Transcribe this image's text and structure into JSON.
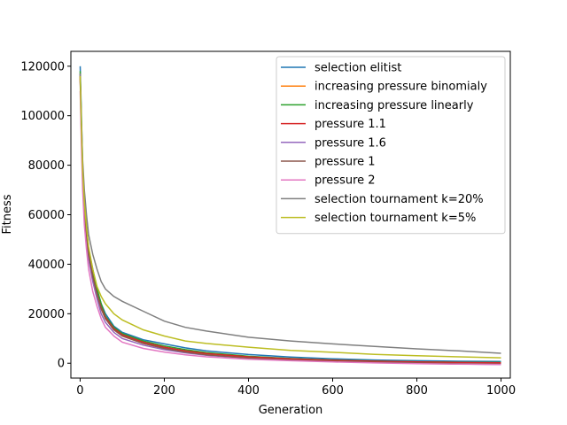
{
  "chart_data": {
    "type": "line",
    "title": "",
    "xlabel": "Generation",
    "ylabel": "Fitness",
    "xlim": [
      -22,
      1022
    ],
    "ylim": [
      -6000,
      126000
    ],
    "xticks": [
      0,
      200,
      400,
      600,
      800,
      1000
    ],
    "yticks": [
      0,
      20000,
      40000,
      60000,
      80000,
      100000,
      120000
    ],
    "xtick_labels": [
      "0",
      "200",
      "400",
      "600",
      "800",
      "1000"
    ],
    "ytick_labels": [
      "0",
      "20000",
      "40000",
      "60000",
      "80000",
      "100000",
      "120000"
    ],
    "grid": false,
    "legend_position": "top-right",
    "series": [
      {
        "name": "selection elitist",
        "color": "#1f77b4",
        "points": [
          [
            0,
            120000
          ],
          [
            3,
            100000
          ],
          [
            6,
            80000
          ],
          [
            10,
            65000
          ],
          [
            15,
            55000
          ],
          [
            20,
            46000
          ],
          [
            30,
            38000
          ],
          [
            40,
            30000
          ],
          [
            50,
            24000
          ],
          [
            60,
            20000
          ],
          [
            80,
            15000
          ],
          [
            100,
            12500
          ],
          [
            150,
            9500
          ],
          [
            200,
            7800
          ],
          [
            250,
            6200
          ],
          [
            300,
            5000
          ],
          [
            400,
            3500
          ],
          [
            500,
            2500
          ],
          [
            600,
            1800
          ],
          [
            700,
            1300
          ],
          [
            800,
            1000
          ],
          [
            900,
            800
          ],
          [
            1000,
            700
          ]
        ]
      },
      {
        "name": "increasing pressure binomialy",
        "color": "#ff7f0e",
        "points": [
          [
            0,
            115000
          ],
          [
            3,
            95000
          ],
          [
            6,
            75000
          ],
          [
            10,
            62000
          ],
          [
            15,
            52000
          ],
          [
            20,
            44000
          ],
          [
            30,
            35000
          ],
          [
            40,
            28000
          ],
          [
            50,
            22000
          ],
          [
            60,
            18000
          ],
          [
            80,
            13500
          ],
          [
            100,
            11000
          ],
          [
            150,
            8000
          ],
          [
            200,
            6000
          ],
          [
            250,
            4500
          ],
          [
            300,
            3500
          ],
          [
            400,
            2200
          ],
          [
            500,
            1500
          ],
          [
            600,
            1000
          ],
          [
            700,
            700
          ],
          [
            800,
            500
          ],
          [
            900,
            300
          ],
          [
            1000,
            200
          ]
        ]
      },
      {
        "name": "increasing pressure linearly",
        "color": "#2ca02c",
        "points": [
          [
            0,
            118000
          ],
          [
            3,
            96000
          ],
          [
            6,
            77000
          ],
          [
            10,
            63000
          ],
          [
            15,
            54000
          ],
          [
            20,
            46000
          ],
          [
            30,
            37000
          ],
          [
            40,
            30000
          ],
          [
            50,
            24000
          ],
          [
            60,
            19000
          ],
          [
            80,
            14500
          ],
          [
            100,
            12000
          ],
          [
            150,
            9000
          ],
          [
            200,
            7000
          ],
          [
            250,
            5500
          ],
          [
            300,
            4300
          ],
          [
            400,
            2800
          ],
          [
            500,
            1900
          ],
          [
            600,
            1300
          ],
          [
            700,
            900
          ],
          [
            800,
            600
          ],
          [
            900,
            400
          ],
          [
            1000,
            300
          ]
        ]
      },
      {
        "name": "pressure 1.1",
        "color": "#d62728",
        "points": [
          [
            0,
            116000
          ],
          [
            3,
            94000
          ],
          [
            6,
            76000
          ],
          [
            10,
            62000
          ],
          [
            15,
            52000
          ],
          [
            20,
            44000
          ],
          [
            30,
            35000
          ],
          [
            40,
            28000
          ],
          [
            50,
            22500
          ],
          [
            60,
            18500
          ],
          [
            80,
            14000
          ],
          [
            100,
            11500
          ],
          [
            150,
            8500
          ],
          [
            200,
            6500
          ],
          [
            250,
            5000
          ],
          [
            300,
            3900
          ],
          [
            400,
            2600
          ],
          [
            500,
            1800
          ],
          [
            600,
            1200
          ],
          [
            700,
            800
          ],
          [
            800,
            500
          ],
          [
            900,
            300
          ],
          [
            1000,
            200
          ]
        ]
      },
      {
        "name": "pressure 1.6",
        "color": "#9467bd",
        "points": [
          [
            0,
            114000
          ],
          [
            3,
            92000
          ],
          [
            6,
            73000
          ],
          [
            10,
            60000
          ],
          [
            15,
            50000
          ],
          [
            20,
            42000
          ],
          [
            30,
            33000
          ],
          [
            40,
            26000
          ],
          [
            50,
            20000
          ],
          [
            60,
            16500
          ],
          [
            80,
            12500
          ],
          [
            100,
            10000
          ],
          [
            150,
            7300
          ],
          [
            200,
            5500
          ],
          [
            250,
            4200
          ],
          [
            300,
            3200
          ],
          [
            400,
            2000
          ],
          [
            500,
            1200
          ],
          [
            600,
            700
          ],
          [
            700,
            300
          ],
          [
            800,
            0
          ],
          [
            900,
            -300
          ],
          [
            1000,
            -500
          ]
        ]
      },
      {
        "name": "pressure 1",
        "color": "#8c564b",
        "points": [
          [
            0,
            117000
          ],
          [
            3,
            95000
          ],
          [
            6,
            76000
          ],
          [
            10,
            62000
          ],
          [
            15,
            52000
          ],
          [
            20,
            44000
          ],
          [
            30,
            35000
          ],
          [
            40,
            28000
          ],
          [
            50,
            22000
          ],
          [
            60,
            18000
          ],
          [
            80,
            13500
          ],
          [
            100,
            11000
          ],
          [
            150,
            8000
          ],
          [
            200,
            6000
          ],
          [
            250,
            4500
          ],
          [
            300,
            3400
          ],
          [
            400,
            2100
          ],
          [
            500,
            1300
          ],
          [
            600,
            800
          ],
          [
            700,
            400
          ],
          [
            800,
            100
          ],
          [
            900,
            -200
          ],
          [
            1000,
            -300
          ]
        ]
      },
      {
        "name": "pressure 2",
        "color": "#e377c2",
        "points": [
          [
            0,
            110000
          ],
          [
            3,
            88000
          ],
          [
            6,
            70000
          ],
          [
            10,
            56000
          ],
          [
            15,
            46000
          ],
          [
            20,
            38000
          ],
          [
            30,
            29000
          ],
          [
            40,
            23000
          ],
          [
            50,
            18000
          ],
          [
            60,
            14500
          ],
          [
            80,
            11000
          ],
          [
            100,
            8500
          ],
          [
            150,
            6000
          ],
          [
            200,
            4500
          ],
          [
            250,
            3400
          ],
          [
            300,
            2600
          ],
          [
            400,
            1600
          ],
          [
            500,
            1000
          ],
          [
            600,
            500
          ],
          [
            700,
            100
          ],
          [
            800,
            -200
          ],
          [
            900,
            -400
          ],
          [
            1000,
            -500
          ]
        ]
      },
      {
        "name": "selection tournament k=20%",
        "color": "#7f7f7f",
        "points": [
          [
            0,
            117000
          ],
          [
            3,
            98000
          ],
          [
            6,
            82000
          ],
          [
            10,
            70000
          ],
          [
            15,
            60000
          ],
          [
            20,
            52000
          ],
          [
            30,
            44000
          ],
          [
            40,
            38000
          ],
          [
            50,
            33000
          ],
          [
            60,
            30000
          ],
          [
            80,
            27000
          ],
          [
            100,
            25000
          ],
          [
            150,
            21000
          ],
          [
            200,
            17000
          ],
          [
            250,
            14500
          ],
          [
            300,
            13000
          ],
          [
            400,
            10500
          ],
          [
            500,
            9000
          ],
          [
            600,
            7800
          ],
          [
            700,
            6800
          ],
          [
            800,
            5800
          ],
          [
            900,
            5000
          ],
          [
            1000,
            4000
          ]
        ]
      },
      {
        "name": "selection tournament k=5%",
        "color": "#bcbd22",
        "points": [
          [
            0,
            116000
          ],
          [
            3,
            96000
          ],
          [
            6,
            78000
          ],
          [
            10,
            65000
          ],
          [
            15,
            55000
          ],
          [
            20,
            47000
          ],
          [
            30,
            38000
          ],
          [
            40,
            31000
          ],
          [
            50,
            27000
          ],
          [
            60,
            24000
          ],
          [
            80,
            20000
          ],
          [
            100,
            17500
          ],
          [
            150,
            13500
          ],
          [
            200,
            11000
          ],
          [
            250,
            9000
          ],
          [
            300,
            8000
          ],
          [
            400,
            6500
          ],
          [
            500,
            5200
          ],
          [
            600,
            4400
          ],
          [
            700,
            3600
          ],
          [
            800,
            3000
          ],
          [
            900,
            2600
          ],
          [
            1000,
            2200
          ]
        ]
      }
    ]
  }
}
